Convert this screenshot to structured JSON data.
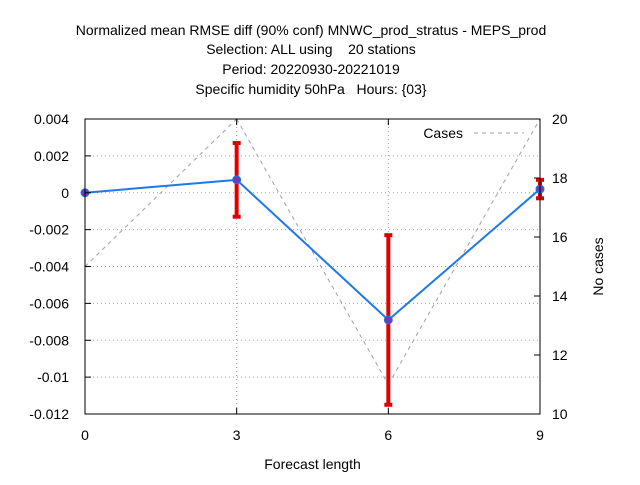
{
  "chart_data": {
    "type": "line",
    "title_lines": [
      "Normalized mean RMSE diff (90% conf) MNWC_prod_stratus - MEPS_prod",
      "Selection: ALL using    20 stations",
      "Period: 20220930-20221019",
      "Specific humidity 50hPa   Hours: {03}"
    ],
    "xlabel": "Forecast length",
    "ylabel": "",
    "y2label": "No cases",
    "x": [
      0,
      3,
      6,
      9
    ],
    "xlim": [
      0,
      9
    ],
    "ylim": [
      -0.012,
      0.004
    ],
    "y2lim": [
      10,
      20
    ],
    "x_ticks": [
      "0",
      "3",
      "6",
      "9"
    ],
    "y_ticks": [
      "0.004",
      "0.002",
      "0",
      "-0.002",
      "-0.004",
      "-0.006",
      "-0.008",
      "-0.01",
      "-0.012"
    ],
    "y2_ticks": [
      "20",
      "18",
      "16",
      "14",
      "12",
      "10"
    ],
    "grid": true,
    "legend_position": "top-right",
    "series": [
      {
        "axis": "left",
        "style": "solid line with markers and error bars",
        "color": "#1e78e6",
        "marker_color": "#6a3fb5",
        "values": [
          0.0,
          0.0007,
          -0.0069,
          0.0002
        ],
        "error_low": [
          0.0,
          -0.0013,
          -0.0115,
          -0.0003
        ],
        "error_high": [
          0.0,
          0.0027,
          -0.0023,
          0.0007
        ],
        "error_color": "#e00000"
      },
      {
        "name": "Cases",
        "axis": "right",
        "style": "dashed",
        "color": "#a0a0a0",
        "values": [
          15,
          20,
          11,
          20
        ]
      }
    ]
  }
}
